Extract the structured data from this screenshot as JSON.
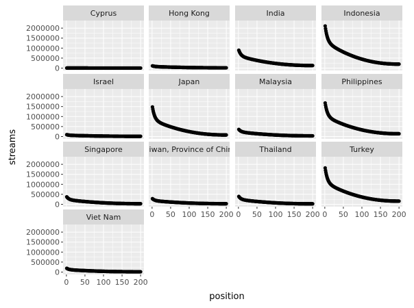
{
  "chart_data": {
    "type": "scatter",
    "layout": "faceted",
    "xlabel": "position",
    "ylabel": "streams",
    "xlim": [
      -9,
      209
    ],
    "ylim": [
      -120000,
      2380000
    ],
    "x_ticks": [
      0,
      50,
      100,
      150,
      200
    ],
    "y_ticks": [
      0,
      500000,
      1000000,
      1500000,
      2000000
    ],
    "x_tick_labels": [
      "0",
      "50",
      "100",
      "150",
      "200"
    ],
    "y_tick_labels": [
      "0",
      "500000",
      "1000000",
      "1500000",
      "2000000"
    ],
    "grid": true,
    "colors": {
      "panel": "#ebebeb",
      "strip": "#d9d9d9",
      "grid": "#ffffff",
      "point": "#000000"
    },
    "facets": [
      {
        "name": "Cyprus",
        "top": 5000,
        "end": 2000,
        "decay": 0.4
      },
      {
        "name": "Hong Kong",
        "top": 120000,
        "end": 15000,
        "decay": 0.4
      },
      {
        "name": "India",
        "top": 950000,
        "end": 130000,
        "decay": 0.42
      },
      {
        "name": "Indonesia",
        "top": 2250000,
        "end": 200000,
        "decay": 0.45
      },
      {
        "name": "Israel",
        "top": 100000,
        "end": 12000,
        "decay": 0.4
      },
      {
        "name": "Japan",
        "top": 1600000,
        "end": 80000,
        "decay": 0.5
      },
      {
        "name": "Malaysia",
        "top": 380000,
        "end": 35000,
        "decay": 0.42
      },
      {
        "name": "Philippines",
        "top": 1800000,
        "end": 140000,
        "decay": 0.47
      },
      {
        "name": "Singapore",
        "top": 400000,
        "end": 30000,
        "decay": 0.45
      },
      {
        "name": "Taiwan, Province of China",
        "top": 300000,
        "end": 30000,
        "decay": 0.42
      },
      {
        "name": "Thailand",
        "top": 420000,
        "end": 25000,
        "decay": 0.45
      },
      {
        "name": "Turkey",
        "top": 1950000,
        "end": 160000,
        "decay": 0.48
      },
      {
        "name": "Viet Nam",
        "top": 200000,
        "end": 15000,
        "decay": 0.42
      }
    ]
  }
}
